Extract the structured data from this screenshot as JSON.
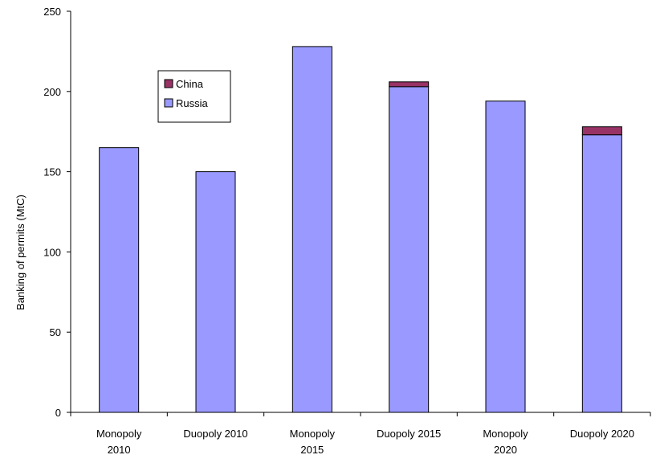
{
  "chart_data": {
    "type": "bar",
    "stacked": true,
    "title": "",
    "xlabel": "",
    "ylabel": "Banking of permits (MtC)",
    "ylim": [
      0,
      250
    ],
    "yticks": [
      0,
      50,
      100,
      150,
      200,
      250
    ],
    "grid": false,
    "legend_position": "inside, upper-left",
    "categories": [
      [
        "Monopoly",
        "2010"
      ],
      [
        "Duopoly 2010"
      ],
      [
        "Monopoly",
        "2015"
      ],
      [
        "Duopoly 2015"
      ],
      [
        "Monopoly",
        "2020"
      ],
      [
        "Duopoly 2020"
      ]
    ],
    "series": [
      {
        "name": "Russia",
        "color": "#9999ff",
        "values": [
          165,
          150,
          228,
          203,
          194,
          173
        ]
      },
      {
        "name": "China",
        "color": "#993366",
        "values": [
          0,
          0,
          0,
          3,
          0,
          5
        ]
      }
    ]
  }
}
